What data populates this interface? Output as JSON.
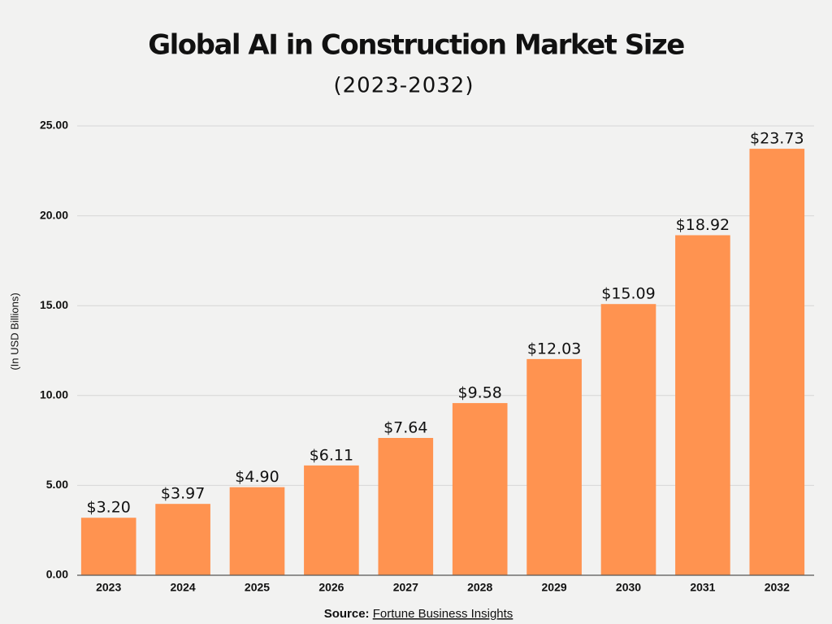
{
  "chart_data": {
    "type": "bar",
    "title": "Global AI in Construction Market Size",
    "subtitle": "(2023-2032)",
    "y_label": "(In USD Billions)",
    "categories": [
      "2023",
      "2024",
      "2025",
      "2026",
      "2027",
      "2028",
      "2029",
      "2030",
      "2031",
      "2032"
    ],
    "values": [
      3.2,
      3.97,
      4.9,
      6.11,
      7.64,
      9.58,
      12.03,
      15.09,
      18.92,
      23.73
    ],
    "value_labels": [
      "$3.20",
      "$3.97",
      "$4.90",
      "$6.11",
      "$7.64",
      "$9.58",
      "$12.03",
      "$15.09",
      "$18.92",
      "$23.73"
    ],
    "color": "#ff9350",
    "ylim": [
      0,
      25
    ],
    "yticks": [
      {
        "value": 0,
        "label": "0.00"
      },
      {
        "value": 5,
        "label": "5.00"
      },
      {
        "value": 10,
        "label": "10.00"
      },
      {
        "value": 15,
        "label": "15.00"
      },
      {
        "value": 20,
        "label": "20.00"
      },
      {
        "value": 25,
        "label": "25.00"
      }
    ],
    "grid": true,
    "source": {
      "label": "Source:",
      "text": "Fortune Business Insights"
    }
  }
}
